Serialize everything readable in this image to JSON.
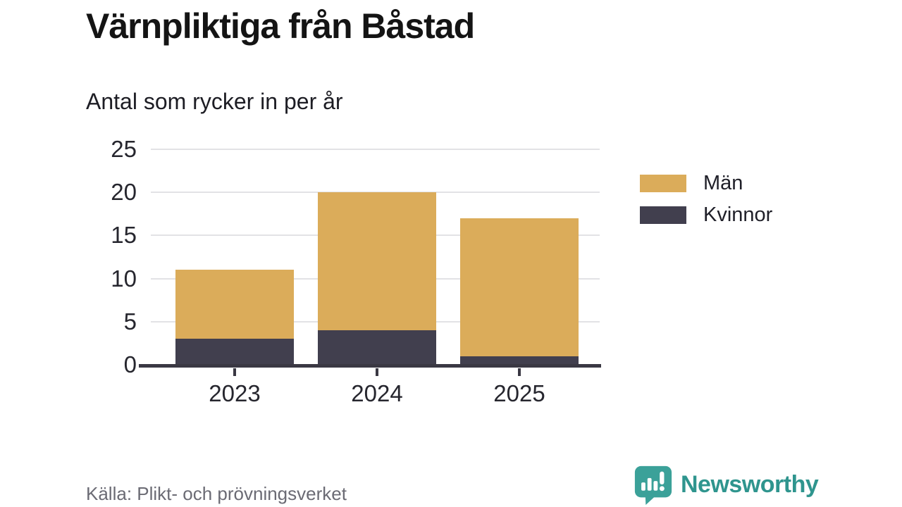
{
  "title": "Värnpliktiga från Båstad",
  "subtitle": "Antal som rycker in per år",
  "source": "Källa: Plikt- och prövningsverket",
  "brand": {
    "name": "Newsworthy",
    "color": "#2f958e",
    "icon": "newsworthy-speech-bubble-bar-chart-icon",
    "icon_color": "#3ba199"
  },
  "colors": {
    "men": "#dbac5a",
    "women": "#413f4e",
    "grid": "#e2e2e5",
    "axis": "#3a3843",
    "tick_text": "#26262e",
    "source_text": "#6b6b74"
  },
  "chart_data": {
    "type": "bar",
    "stacked": true,
    "title": "Värnpliktiga från Båstad",
    "subtitle": "Antal som rycker in per år",
    "categories": [
      "2023",
      "2024",
      "2025"
    ],
    "series": [
      {
        "name": "Kvinnor",
        "color": "#413f4e",
        "values": [
          3,
          4,
          1
        ]
      },
      {
        "name": "Män",
        "color": "#dbac5a",
        "values": [
          8,
          16,
          16
        ]
      }
    ],
    "totals": [
      11,
      20,
      17
    ],
    "xlabel": "",
    "ylabel": "",
    "ylim": [
      0,
      25
    ],
    "yticks": [
      0,
      5,
      10,
      15,
      20,
      25
    ],
    "grid": true,
    "legend": [
      {
        "label": "Män",
        "color": "#dbac5a"
      },
      {
        "label": "Kvinnor",
        "color": "#413f4e"
      }
    ],
    "legend_position": "right"
  }
}
